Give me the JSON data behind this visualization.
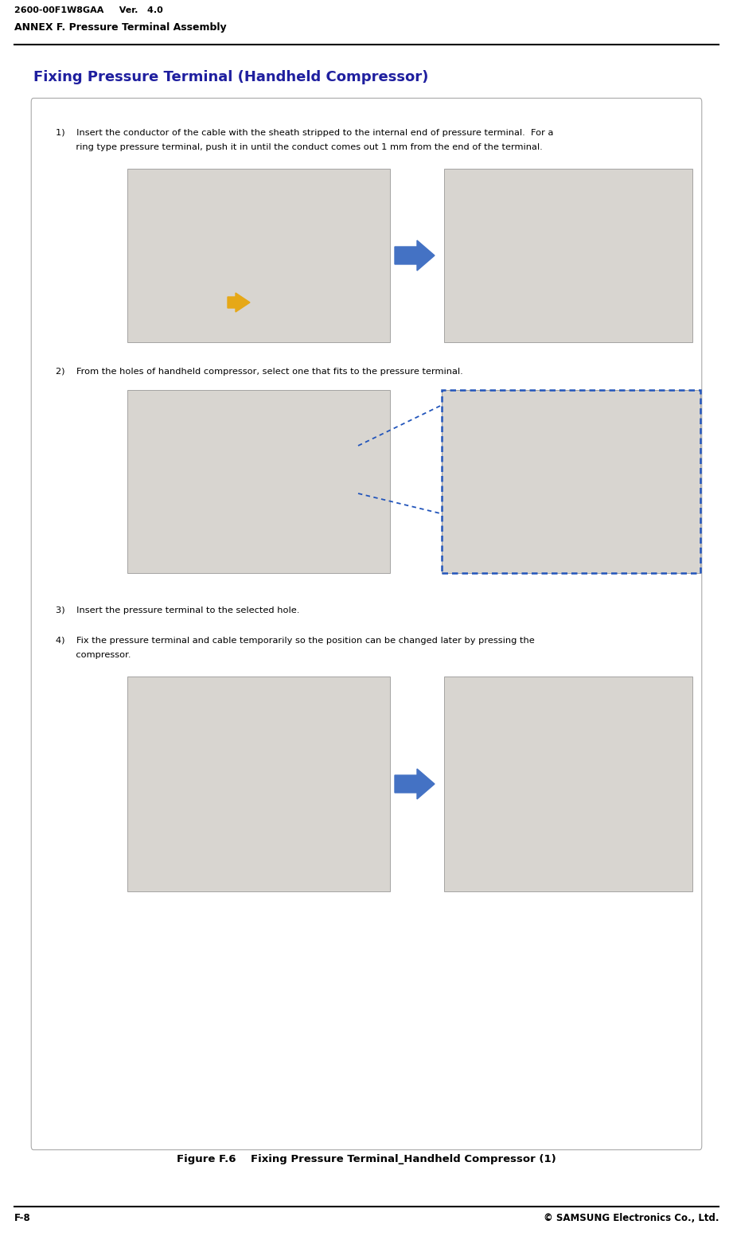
{
  "page_width": 9.21,
  "page_height": 15.58,
  "bg_color": "#ffffff",
  "header_left": "2600-00F1W8GAA     Ver.   4.0",
  "header_sub": "ANNEX F. Pressure Terminal Assembly",
  "footer_left": "F-8",
  "footer_right": "© SAMSUNG Electronics Co., Ltd.",
  "section_title": "Fixing Pressure Terminal (Handheld Compressor)",
  "section_title_color": "#1f1f9f",
  "figure_caption": "Figure F.6    Fixing Pressure Terminal_Handheld Compressor (1)",
  "step1_line1": "1)    Insert the conductor of the cable with the sheath stripped to the internal end of pressure terminal.  For a",
  "step1_line2": "       ring type pressure terminal, push it in until the conduct comes out 1 mm from the end of the terminal.",
  "step2_text": "2)    From the holes of handheld compressor, select one that fits to the pressure terminal.",
  "step3_text": "3)    Insert the pressure terminal to the selected hole.",
  "step4_line1": "4)    Fix the pressure terminal and cable temporarily so the position can be changed later by pressing the",
  "step4_line2": "       compressor.",
  "arrow_blue": "#4472c4",
  "arrow_yellow": "#e6a817",
  "dotted_blue": "#2255bb",
  "img_bg_light": "#d8d5d0",
  "img_bg_mid": "#c8c4c0",
  "img_border": "#888888"
}
